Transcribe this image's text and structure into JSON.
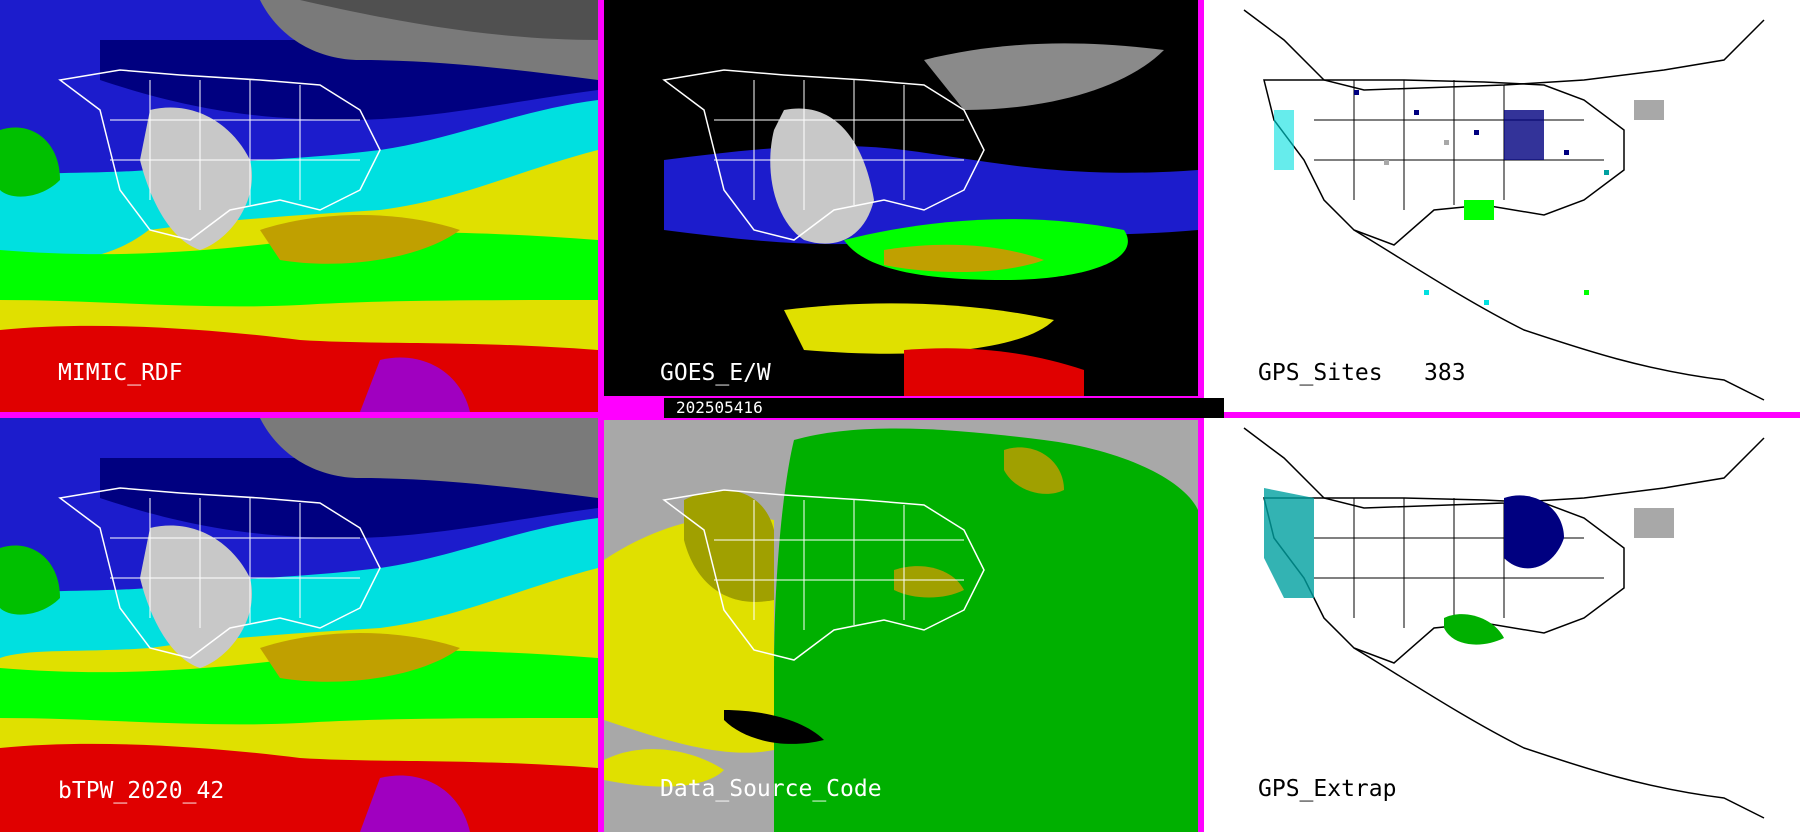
{
  "panels": {
    "mimic": {
      "label": "MIMIC_RDF"
    },
    "goes": {
      "label": "GOES_E/W"
    },
    "gps_sites": {
      "label": "GPS_Sites",
      "count": "383"
    },
    "btpw": {
      "label": "bTPW_2020_42"
    },
    "data_source": {
      "label": "Data_Source_Code"
    },
    "gps_extrap": {
      "label": "GPS_Extrap"
    }
  },
  "timestamp": "202505416",
  "colors": {
    "divider": "#ff00ff",
    "white": "#ffffff",
    "black": "#000000",
    "navy": "#000080",
    "blue": "#1c1ccc",
    "cyan": "#00e0e0",
    "teal": "#00a0a0",
    "green": "#00ff00",
    "dkgreen": "#00b000",
    "yellow": "#e0e000",
    "olive": "#a0a000",
    "red": "#e00000",
    "magenta": "#a000c0",
    "gray": "#a8a8a8"
  }
}
